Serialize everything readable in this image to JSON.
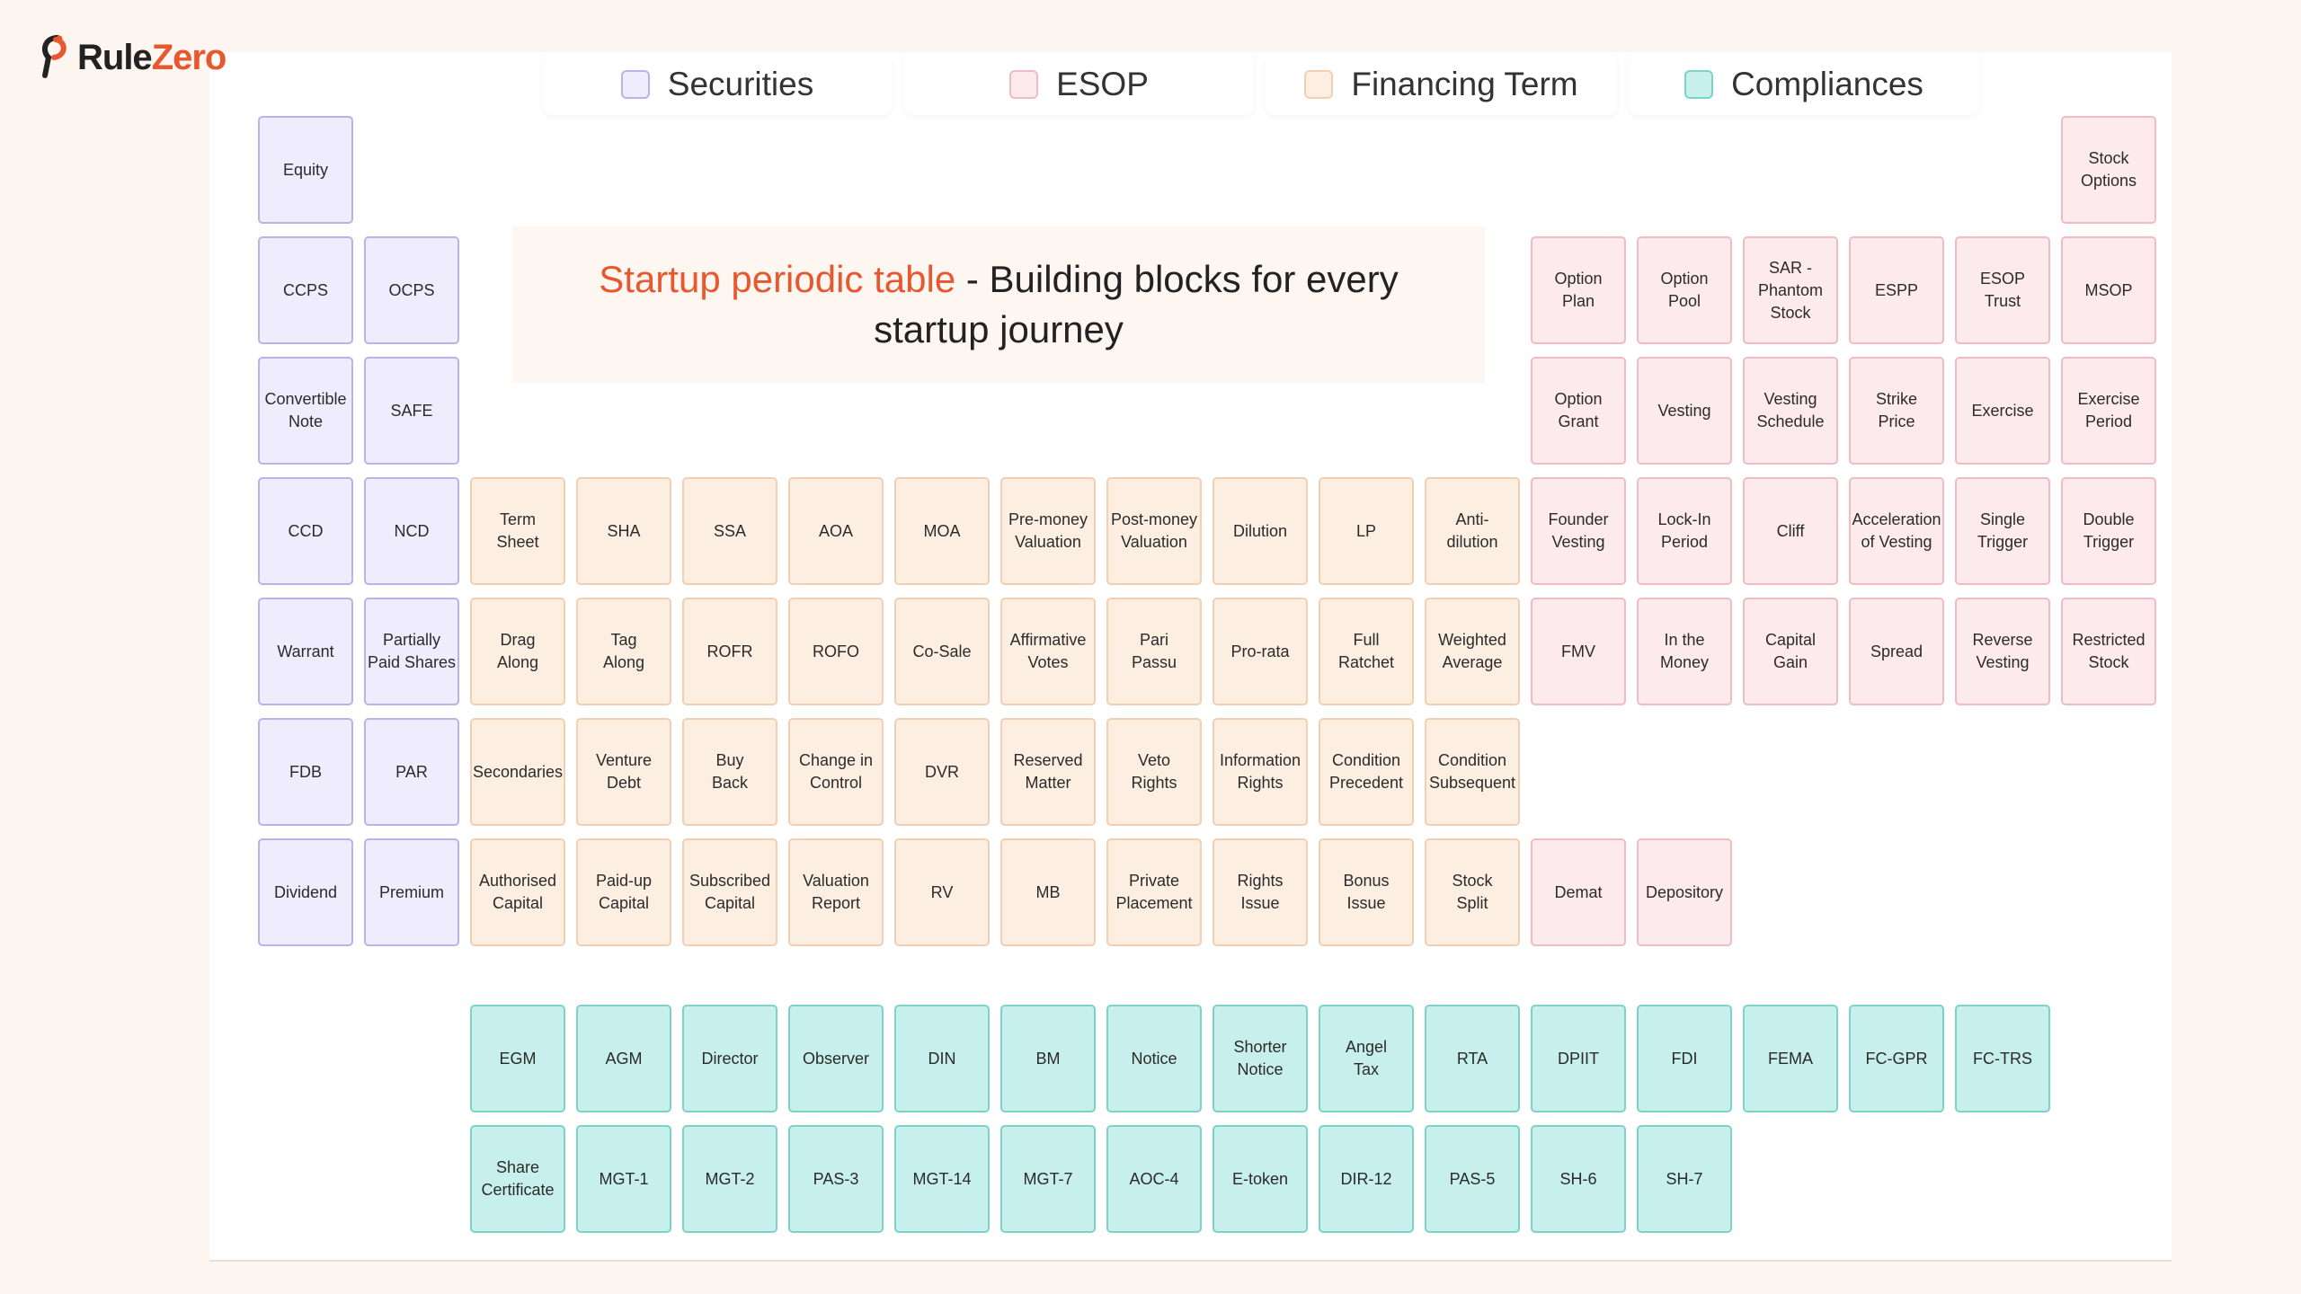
{
  "brand": {
    "name_part1": "Rule",
    "name_part2": "Zero",
    "accent_color": "#e8572e"
  },
  "legend": [
    {
      "id": "securities",
      "label": "Securities",
      "color": "#eeecfd",
      "border": "#b9b3ea"
    },
    {
      "id": "esop",
      "label": "ESOP",
      "color": "#fdeaec",
      "border": "#f0bcc4"
    },
    {
      "id": "financing",
      "label": "Financing Term",
      "color": "#fdeee2",
      "border": "#f3cfb1"
    },
    {
      "id": "compliances",
      "label": "Compliances",
      "color": "#c7efec",
      "border": "#7fd2c9"
    }
  ],
  "title": {
    "accent": "Startup periodic table",
    "rest": " - Building blocks for every startup journey"
  },
  "elements": [
    {
      "label": "Equity",
      "category": "securities",
      "row": 0,
      "col": 0
    },
    {
      "label": "CCPS",
      "category": "securities",
      "row": 1,
      "col": 0
    },
    {
      "label": "OCPS",
      "category": "securities",
      "row": 1,
      "col": 1
    },
    {
      "label": "Convertible\nNote",
      "category": "securities",
      "row": 2,
      "col": 0
    },
    {
      "label": "SAFE",
      "category": "securities",
      "row": 2,
      "col": 1
    },
    {
      "label": "CCD",
      "category": "securities",
      "row": 3,
      "col": 0
    },
    {
      "label": "NCD",
      "category": "securities",
      "row": 3,
      "col": 1
    },
    {
      "label": "Warrant",
      "category": "securities",
      "row": 4,
      "col": 0
    },
    {
      "label": "Partially\nPaid Shares",
      "category": "securities",
      "row": 4,
      "col": 1
    },
    {
      "label": "FDB",
      "category": "securities",
      "row": 5,
      "col": 0
    },
    {
      "label": "PAR",
      "category": "securities",
      "row": 5,
      "col": 1
    },
    {
      "label": "Dividend",
      "category": "securities",
      "row": 6,
      "col": 0
    },
    {
      "label": "Premium",
      "category": "securities",
      "row": 6,
      "col": 1
    },
    {
      "label": "Stock\nOptions",
      "category": "esop",
      "row": 0,
      "col": 17
    },
    {
      "label": "Option\nPlan",
      "category": "esop",
      "row": 1,
      "col": 12
    },
    {
      "label": "Option\nPool",
      "category": "esop",
      "row": 1,
      "col": 13
    },
    {
      "label": "SAR -\nPhantom\nStock",
      "category": "esop",
      "row": 1,
      "col": 14
    },
    {
      "label": "ESPP",
      "category": "esop",
      "row": 1,
      "col": 15
    },
    {
      "label": "ESOP\nTrust",
      "category": "esop",
      "row": 1,
      "col": 16
    },
    {
      "label": "MSOP",
      "category": "esop",
      "row": 1,
      "col": 17
    },
    {
      "label": "Option\nGrant",
      "category": "esop",
      "row": 2,
      "col": 12
    },
    {
      "label": "Vesting",
      "category": "esop",
      "row": 2,
      "col": 13
    },
    {
      "label": "Vesting\nSchedule",
      "category": "esop",
      "row": 2,
      "col": 14
    },
    {
      "label": "Strike\nPrice",
      "category": "esop",
      "row": 2,
      "col": 15
    },
    {
      "label": "Exercise",
      "category": "esop",
      "row": 2,
      "col": 16
    },
    {
      "label": "Exercise\nPeriod",
      "category": "esop",
      "row": 2,
      "col": 17
    },
    {
      "label": "Founder\nVesting",
      "category": "esop",
      "row": 3,
      "col": 12
    },
    {
      "label": "Lock-In\nPeriod",
      "category": "esop",
      "row": 3,
      "col": 13
    },
    {
      "label": "Cliff",
      "category": "esop",
      "row": 3,
      "col": 14
    },
    {
      "label": "Acceleration\nof Vesting",
      "category": "esop",
      "row": 3,
      "col": 15
    },
    {
      "label": "Single\nTrigger",
      "category": "esop",
      "row": 3,
      "col": 16
    },
    {
      "label": "Double\nTrigger",
      "category": "esop",
      "row": 3,
      "col": 17
    },
    {
      "label": "FMV",
      "category": "esop",
      "row": 4,
      "col": 12
    },
    {
      "label": "In the\nMoney",
      "category": "esop",
      "row": 4,
      "col": 13
    },
    {
      "label": "Capital\nGain",
      "category": "esop",
      "row": 4,
      "col": 14
    },
    {
      "label": "Spread",
      "category": "esop",
      "row": 4,
      "col": 15
    },
    {
      "label": "Reverse\nVesting",
      "category": "esop",
      "row": 4,
      "col": 16
    },
    {
      "label": "Restricted\nStock",
      "category": "esop",
      "row": 4,
      "col": 17
    },
    {
      "label": "Demat",
      "category": "esop",
      "row": 6,
      "col": 12
    },
    {
      "label": "Depository",
      "category": "esop",
      "row": 6,
      "col": 13
    },
    {
      "label": "Term\nSheet",
      "category": "financing",
      "row": 3,
      "col": 2
    },
    {
      "label": "SHA",
      "category": "financing",
      "row": 3,
      "col": 3
    },
    {
      "label": "SSA",
      "category": "financing",
      "row": 3,
      "col": 4
    },
    {
      "label": "AOA",
      "category": "financing",
      "row": 3,
      "col": 5
    },
    {
      "label": "MOA",
      "category": "financing",
      "row": 3,
      "col": 6
    },
    {
      "label": "Pre-money\nValuation",
      "category": "financing",
      "row": 3,
      "col": 7
    },
    {
      "label": "Post-money\nValuation",
      "category": "financing",
      "row": 3,
      "col": 8
    },
    {
      "label": "Dilution",
      "category": "financing",
      "row": 3,
      "col": 9
    },
    {
      "label": "LP",
      "category": "financing",
      "row": 3,
      "col": 10
    },
    {
      "label": "Anti-\ndilution",
      "category": "financing",
      "row": 3,
      "col": 11
    },
    {
      "label": "Drag\nAlong",
      "category": "financing",
      "row": 4,
      "col": 2
    },
    {
      "label": "Tag\nAlong",
      "category": "financing",
      "row": 4,
      "col": 3
    },
    {
      "label": "ROFR",
      "category": "financing",
      "row": 4,
      "col": 4
    },
    {
      "label": "ROFO",
      "category": "financing",
      "row": 4,
      "col": 5
    },
    {
      "label": "Co-Sale",
      "category": "financing",
      "row": 4,
      "col": 6
    },
    {
      "label": "Affirmative\nVotes",
      "category": "financing",
      "row": 4,
      "col": 7
    },
    {
      "label": "Pari\nPassu",
      "category": "financing",
      "row": 4,
      "col": 8
    },
    {
      "label": "Pro-rata",
      "category": "financing",
      "row": 4,
      "col": 9
    },
    {
      "label": "Full\nRatchet",
      "category": "financing",
      "row": 4,
      "col": 10
    },
    {
      "label": "Weighted\nAverage",
      "category": "financing",
      "row": 4,
      "col": 11
    },
    {
      "label": "Secondaries",
      "category": "financing",
      "row": 5,
      "col": 2
    },
    {
      "label": "Venture\nDebt",
      "category": "financing",
      "row": 5,
      "col": 3
    },
    {
      "label": "Buy\nBack",
      "category": "financing",
      "row": 5,
      "col": 4
    },
    {
      "label": "Change in\nControl",
      "category": "financing",
      "row": 5,
      "col": 5
    },
    {
      "label": "DVR",
      "category": "financing",
      "row": 5,
      "col": 6
    },
    {
      "label": "Reserved\nMatter",
      "category": "financing",
      "row": 5,
      "col": 7
    },
    {
      "label": "Veto\nRights",
      "category": "financing",
      "row": 5,
      "col": 8
    },
    {
      "label": "Information\nRights",
      "category": "financing",
      "row": 5,
      "col": 9
    },
    {
      "label": "Condition\nPrecedent",
      "category": "financing",
      "row": 5,
      "col": 10
    },
    {
      "label": "Condition\nSubsequent",
      "category": "financing",
      "row": 5,
      "col": 11
    },
    {
      "label": "Authorised\nCapital",
      "category": "financing",
      "row": 6,
      "col": 2
    },
    {
      "label": "Paid-up\nCapital",
      "category": "financing",
      "row": 6,
      "col": 3
    },
    {
      "label": "Subscribed\nCapital",
      "category": "financing",
      "row": 6,
      "col": 4
    },
    {
      "label": "Valuation\nReport",
      "category": "financing",
      "row": 6,
      "col": 5
    },
    {
      "label": "RV",
      "category": "financing",
      "row": 6,
      "col": 6
    },
    {
      "label": "MB",
      "category": "financing",
      "row": 6,
      "col": 7
    },
    {
      "label": "Private\nPlacement",
      "category": "financing",
      "row": 6,
      "col": 8
    },
    {
      "label": "Rights\nIssue",
      "category": "financing",
      "row": 6,
      "col": 9
    },
    {
      "label": "Bonus\nIssue",
      "category": "financing",
      "row": 6,
      "col": 10
    },
    {
      "label": "Stock\nSplit",
      "category": "financing",
      "row": 6,
      "col": 11
    },
    {
      "label": "EGM",
      "category": "compliances",
      "row": 7,
      "col": 2
    },
    {
      "label": "AGM",
      "category": "compliances",
      "row": 7,
      "col": 3
    },
    {
      "label": "Director",
      "category": "compliances",
      "row": 7,
      "col": 4
    },
    {
      "label": "Observer",
      "category": "compliances",
      "row": 7,
      "col": 5
    },
    {
      "label": "DIN",
      "category": "compliances",
      "row": 7,
      "col": 6
    },
    {
      "label": "BM",
      "category": "compliances",
      "row": 7,
      "col": 7
    },
    {
      "label": "Notice",
      "category": "compliances",
      "row": 7,
      "col": 8
    },
    {
      "label": "Shorter\nNotice",
      "category": "compliances",
      "row": 7,
      "col": 9
    },
    {
      "label": "Angel\nTax",
      "category": "compliances",
      "row": 7,
      "col": 10
    },
    {
      "label": "RTA",
      "category": "compliances",
      "row": 7,
      "col": 11
    },
    {
      "label": "DPIIT",
      "category": "compliances",
      "row": 7,
      "col": 12
    },
    {
      "label": "FDI",
      "category": "compliances",
      "row": 7,
      "col": 13
    },
    {
      "label": "FEMA",
      "category": "compliances",
      "row": 7,
      "col": 14
    },
    {
      "label": "FC-GPR",
      "category": "compliances",
      "row": 7,
      "col": 15
    },
    {
      "label": "FC-TRS",
      "category": "compliances",
      "row": 7,
      "col": 16
    },
    {
      "label": "Share\nCertificate",
      "category": "compliances",
      "row": 8,
      "col": 2
    },
    {
      "label": "MGT-1",
      "category": "compliances",
      "row": 8,
      "col": 3
    },
    {
      "label": "MGT-2",
      "category": "compliances",
      "row": 8,
      "col": 4
    },
    {
      "label": "PAS-3",
      "category": "compliances",
      "row": 8,
      "col": 5
    },
    {
      "label": "MGT-14",
      "category": "compliances",
      "row": 8,
      "col": 6
    },
    {
      "label": "MGT-7",
      "category": "compliances",
      "row": 8,
      "col": 7
    },
    {
      "label": "AOC-4",
      "category": "compliances",
      "row": 8,
      "col": 8
    },
    {
      "label": "E-token",
      "category": "compliances",
      "row": 8,
      "col": 9
    },
    {
      "label": "DIR-12",
      "category": "compliances",
      "row": 8,
      "col": 10
    },
    {
      "label": "PAS-5",
      "category": "compliances",
      "row": 8,
      "col": 11
    },
    {
      "label": "SH-6",
      "category": "compliances",
      "row": 8,
      "col": 12
    },
    {
      "label": "SH-7",
      "category": "compliances",
      "row": 8,
      "col": 13
    }
  ]
}
